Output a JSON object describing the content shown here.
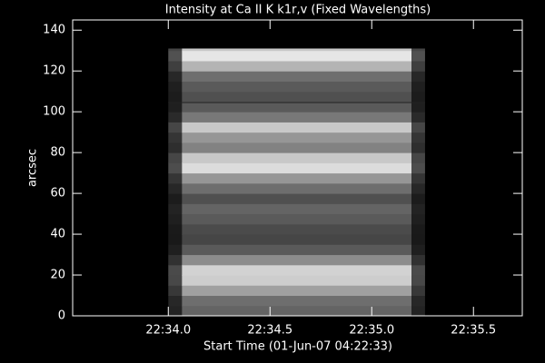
{
  "chart_data": {
    "type": "image",
    "title": "Intensity at Ca II K k1r,v (Fixed Wavelengths)",
    "x_label": "Start Time (01-Jun-07 04:22:33)",
    "y_label": "arcsec",
    "xlim": [
      33.53,
      35.74
    ],
    "ylim": [
      0,
      145
    ],
    "xticks": [
      {
        "value": 34.0,
        "label": "22:34.0"
      },
      {
        "value": 34.5,
        "label": "22:34.5"
      },
      {
        "value": 35.0,
        "label": "22:35.0"
      },
      {
        "value": 35.5,
        "label": "22:35.5"
      }
    ],
    "yticks": [
      0,
      20,
      40,
      60,
      80,
      100,
      120,
      140
    ],
    "x_edges": [
      34.0,
      34.067,
      35.196,
      35.262
    ],
    "column_gain": [
      0.35,
      1,
      0.35
    ],
    "row_edges": [
      0,
      5,
      10,
      15,
      20,
      25,
      30,
      35,
      40,
      45,
      50,
      55,
      60,
      65,
      70,
      75,
      80,
      85,
      90,
      95,
      100,
      105,
      110,
      115,
      120,
      125,
      130,
      131
    ],
    "intensity": [
      100,
      110,
      160,
      205,
      210,
      140,
      90,
      70,
      75,
      90,
      100,
      80,
      110,
      150,
      220,
      200,
      130,
      150,
      200,
      120,
      90,
      80,
      90,
      110,
      180,
      230,
      200
    ],
    "hline": 104.5,
    "background": "#000000",
    "foreground": "#ffffff"
  }
}
